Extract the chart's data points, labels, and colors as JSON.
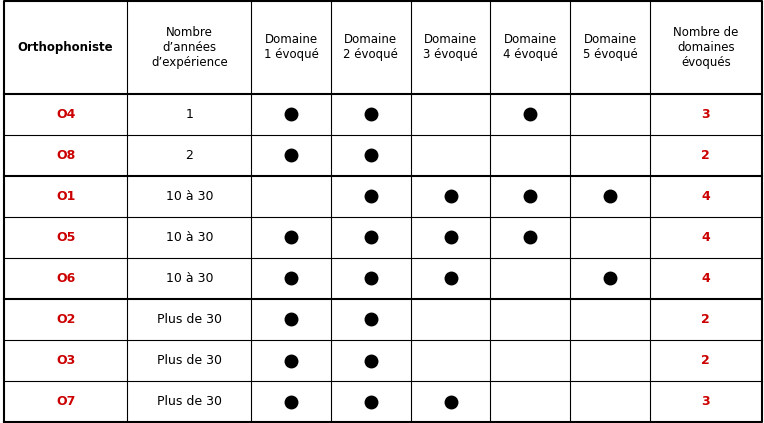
{
  "col_headers": [
    "Orthophoniste",
    "Nombre\nd’années\nd’expérience",
    "Domaine\n1 évoqué",
    "Domaine\n2 évoqué",
    "Domaine\n3 évoqué",
    "Domaine\n4 évoqué",
    "Domaine\n5 évoqué",
    "Nombre de\ndomaines\névoqués"
  ],
  "rows": [
    {
      "ortho": "O4",
      "annees": "1",
      "domains": [
        1,
        1,
        0,
        1,
        0
      ],
      "total": "3"
    },
    {
      "ortho": "O8",
      "annees": "2",
      "domains": [
        1,
        1,
        0,
        0,
        0
      ],
      "total": "2"
    },
    {
      "ortho": "O1",
      "annees": "10 à 30",
      "domains": [
        0,
        1,
        1,
        1,
        1
      ],
      "total": "4"
    },
    {
      "ortho": "O5",
      "annees": "10 à 30",
      "domains": [
        1,
        1,
        1,
        1,
        0
      ],
      "total": "4"
    },
    {
      "ortho": "O6",
      "annees": "10 à 30",
      "domains": [
        1,
        1,
        1,
        0,
        1
      ],
      "total": "4"
    },
    {
      "ortho": "O2",
      "annees": "Plus de 30",
      "domains": [
        1,
        1,
        0,
        0,
        0
      ],
      "total": "2"
    },
    {
      "ortho": "O3",
      "annees": "Plus de 30",
      "domains": [
        1,
        1,
        0,
        0,
        0
      ],
      "total": "2"
    },
    {
      "ortho": "O7",
      "annees": "Plus de 30",
      "domains": [
        1,
        1,
        1,
        0,
        0
      ],
      "total": "3"
    }
  ],
  "ortho_color": "#cc0000",
  "total_color": "#cc0000",
  "header_color": "#000000",
  "dot_color": "#000000",
  "bg_color": "#ffffff",
  "line_color": "#000000",
  "thick_line_after_rows": [
    1,
    4
  ],
  "col_widths_ratio": [
    1.55,
    1.55,
    1.0,
    1.0,
    1.0,
    1.0,
    1.0,
    1.4
  ],
  "header_fontsize": 8.5,
  "cell_fontsize": 9,
  "dot_markersize": 9
}
